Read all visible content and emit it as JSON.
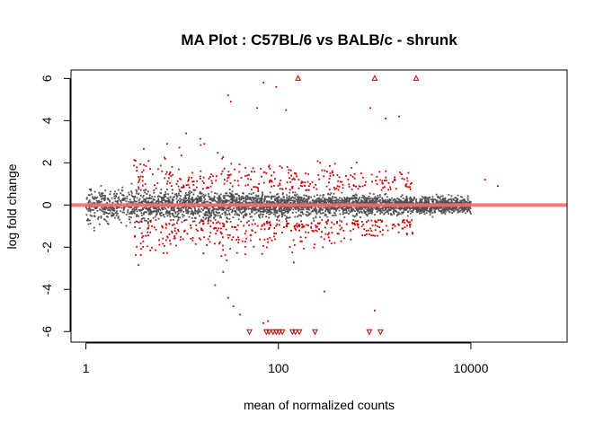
{
  "chart_data": {
    "type": "scatter",
    "title": "MA Plot : C57BL/6 vs BALB/c - shrunk",
    "xlabel": "mean of normalized counts",
    "ylabel": "log fold change",
    "x_scale": "log10",
    "xlim": [
      0.7,
      100000
    ],
    "ylim": [
      -6.5,
      6.4
    ],
    "x_ticks": [
      1,
      100,
      10000
    ],
    "x_tick_labels": [
      "1",
      "100",
      "10000"
    ],
    "y_ticks": [
      -6,
      -4,
      -2,
      0,
      2,
      4,
      6
    ],
    "y_tick_labels": [
      "-6",
      "-4",
      "-2",
      "0",
      "2",
      "4",
      "6"
    ],
    "reference_line": {
      "y": 0,
      "color": "#ff6a6a"
    },
    "colors": {
      "non_significant": "#505050",
      "significant": "#cc0000",
      "out_of_range_marker": "#cc0000"
    },
    "legend": "none",
    "grid": false,
    "series": [
      {
        "role": "significant-clipped-up",
        "marker": "triangle-up",
        "points": [
          [
            160,
            6
          ],
          [
            1000,
            6
          ],
          [
            2700,
            6
          ]
        ]
      },
      {
        "role": "significant-clipped-down",
        "marker": "triangle-down",
        "points": [
          [
            50,
            -6
          ],
          [
            75,
            -6
          ],
          [
            80,
            -6
          ],
          [
            88,
            -6
          ],
          [
            95,
            -6
          ],
          [
            102,
            -6
          ],
          [
            110,
            -6
          ],
          [
            140,
            -6
          ],
          [
            150,
            -6
          ],
          [
            165,
            -6
          ],
          [
            240,
            -6
          ],
          [
            880,
            -6
          ],
          [
            1150,
            -6
          ]
        ]
      },
      {
        "role": "significant-outliers",
        "marker": "dot",
        "points": [
          [
            30,
            5.2
          ],
          [
            32,
            4.9
          ],
          [
            70,
            5.8
          ],
          [
            95,
            5.6
          ],
          [
            60,
            4.6
          ],
          [
            120,
            4.5
          ],
          [
            900,
            4.6
          ],
          [
            1300,
            4.1
          ],
          [
            1800,
            4.2
          ],
          [
            11,
            3.4
          ],
          [
            17,
            2.9
          ],
          [
            26,
            2.2
          ],
          [
            30,
            -4.4
          ],
          [
            34,
            -4.8
          ],
          [
            22,
            -3.8
          ],
          [
            40,
            -5.2
          ],
          [
            70,
            -5.6
          ],
          [
            78,
            -5.5
          ],
          [
            300,
            -4.1
          ],
          [
            1000,
            -5.0
          ],
          [
            19000,
            0.9
          ],
          [
            14000,
            1.2
          ]
        ]
      }
    ]
  }
}
